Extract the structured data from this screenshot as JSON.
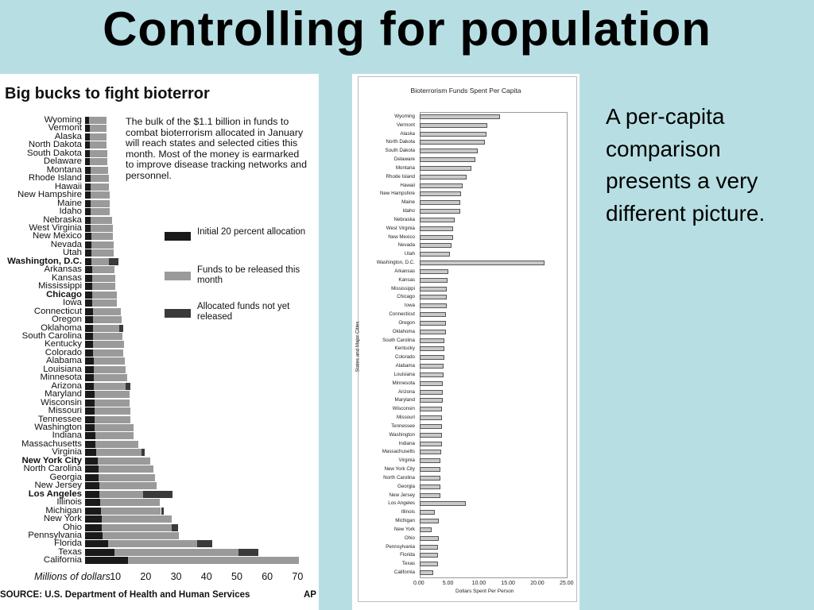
{
  "slide": {
    "title": "Controlling for population",
    "side_text": "A per-capita comparison presents a very different picture."
  },
  "left_chart": {
    "title": "Big bucks to fight bioterror",
    "note": "The bulk of the $1.1 billion in funds to combat bioterrorism allocated in January will reach states and selected cities this month. Most of the money is earmarked to improve disease tracking networks and personnel.",
    "legend": [
      {
        "label": "Initial 20 percent allocation",
        "color": "#1a1a1a"
      },
      {
        "label": "Funds to be released this month",
        "color": "#9a9a9a"
      },
      {
        "label": "Allocated funds not yet released",
        "color": "#3a3a3a"
      }
    ],
    "xlabel": "Millions of dollars",
    "ticks": [
      "10",
      "20",
      "30",
      "40",
      "50",
      "60",
      "70"
    ],
    "source": "SOURCE: U.S. Department of Health and Human Services",
    "credit": "AP"
  },
  "right_chart": {
    "title": "Bioterrorism Funds Spent Per Capita",
    "xlabel": "Dollars Spent Per Person",
    "ylabel": "States and Major Cities",
    "ticks": [
      "0.00",
      "5.00",
      "10.00",
      "15.00",
      "20.00",
      "25.00"
    ]
  },
  "chart_data": [
    {
      "type": "bar",
      "orientation": "horizontal",
      "stacked": true,
      "title": "Big bucks to fight bioterror",
      "xlabel": "Millions of dollars",
      "xlim": [
        0,
        70
      ],
      "categories": [
        "Wyoming",
        "Vermont",
        "Alaska",
        "North Dakota",
        "South Dakota",
        "Delaware",
        "Montana",
        "Rhode Island",
        "Hawaii",
        "New Hampshire",
        "Maine",
        "Idaho",
        "Nebraska",
        "West Virginia",
        "New Mexico",
        "Nevada",
        "Utah",
        "Washington, D.C.",
        "Arkansas",
        "Kansas",
        "Mississippi",
        "Chicago",
        "Iowa",
        "Connecticut",
        "Oregon",
        "Oklahoma",
        "South Carolina",
        "Kentucky",
        "Colorado",
        "Alabama",
        "Louisiana",
        "Minnesota",
        "Arizona",
        "Maryland",
        "Wisconsin",
        "Missouri",
        "Tennessee",
        "Washington",
        "Indiana",
        "Massachusetts",
        "Virginia",
        "New York City",
        "North Carolina",
        "Georgia",
        "New Jersey",
        "Los Angeles",
        "Illinois",
        "Michigan",
        "New York",
        "Ohio",
        "Pennsylvania",
        "Florida",
        "Texas",
        "California"
      ],
      "bold_categories": [
        "Washington, D.C.",
        "Chicago",
        "New York City",
        "Los Angeles"
      ],
      "series": [
        {
          "name": "Initial 20 percent allocation",
          "values": [
            1.4,
            1.6,
            1.6,
            1.6,
            1.6,
            1.7,
            1.8,
            1.8,
            1.8,
            1.8,
            1.8,
            1.8,
            1.9,
            1.9,
            2.0,
            2.0,
            2.1,
            2.2,
            2.3,
            2.3,
            2.3,
            2.4,
            2.4,
            2.5,
            2.5,
            2.6,
            2.6,
            2.6,
            2.7,
            2.8,
            2.8,
            3.0,
            3.0,
            3.1,
            3.1,
            3.2,
            3.2,
            3.2,
            3.3,
            3.4,
            3.6,
            4.3,
            4.5,
            4.5,
            4.6,
            4.8,
            5.1,
            5.3,
            5.4,
            5.5,
            5.8,
            7.6,
            9.8,
            14.2
          ]
        },
        {
          "name": "Funds to be released this month",
          "values": [
            5.6,
            5.4,
            5.4,
            5.5,
            5.6,
            5.6,
            5.7,
            6.1,
            6.0,
            6.3,
            6.4,
            6.2,
            7.1,
            7.2,
            7.1,
            7.4,
            7.4,
            5.6,
            7.4,
            7.7,
            7.7,
            8.1,
            8.2,
            9.4,
            9.5,
            8.6,
            9.6,
            10.1,
            9.9,
            10.3,
            10.5,
            11.0,
            10.4,
            11.6,
            11.6,
            11.7,
            11.6,
            12.7,
            12.6,
            14.1,
            15.0,
            17.2,
            18.1,
            18.5,
            18.9,
            14.2,
            19.4,
            19.7,
            23.1,
            23.1,
            25.2,
            29.3,
            40.6,
            56.1
          ]
        },
        {
          "name": "Allocated funds not yet released",
          "values": [
            0,
            0,
            0,
            0,
            0,
            0,
            0,
            0,
            0,
            0,
            0,
            0,
            0,
            0,
            0,
            0,
            0,
            3.2,
            0,
            0,
            0,
            0,
            0,
            0,
            0,
            1.4,
            0,
            0,
            0,
            0,
            0,
            0,
            1.6,
            0,
            0,
            0,
            0,
            0,
            0,
            0,
            1.0,
            0,
            0,
            0,
            0,
            9.8,
            0,
            0.8,
            0,
            2.1,
            0,
            5.0,
            6.8,
            0
          ]
        }
      ]
    },
    {
      "type": "bar",
      "orientation": "horizontal",
      "title": "Bioterrorism Funds Spent Per Capita",
      "xlabel": "Dollars Spent Per Person",
      "ylabel": "States and Major Cities",
      "xlim": [
        0,
        25
      ],
      "categories": [
        "Wyoming",
        "Vermont",
        "Alaska",
        "North Dakota",
        "South Dakota",
        "Delaware",
        "Montana",
        "Rhode Island",
        "Hawaii",
        "New Hampshire",
        "Maine",
        "Idaho",
        "Nebraska",
        "West Virginia",
        "New Mexico",
        "Nevada",
        "Utah",
        "Washington, D.C.",
        "Arkansas",
        "Kansas",
        "Mississippi",
        "Chicago",
        "Iowa",
        "Connecticut",
        "Oregon",
        "Oklahoma",
        "South Carolina",
        "Kentucky",
        "Colorado",
        "Alabama",
        "Louisiana",
        "Minnesota",
        "Arizona",
        "Maryland",
        "Wisconsin",
        "Missouri",
        "Tennessee",
        "Washington",
        "Indiana",
        "Massachusetts",
        "Virginia",
        "New York City",
        "North Carolina",
        "Georgia",
        "New Jersey",
        "Los Angeles",
        "Illinois",
        "Michigan",
        "New York",
        "Ohio",
        "Pennsylvania",
        "Florida",
        "Texas",
        "California"
      ],
      "values": [
        13.4,
        11.3,
        11.1,
        10.9,
        9.6,
        9.3,
        8.5,
        7.7,
        7.0,
        6.8,
        6.7,
        6.7,
        5.7,
        5.5,
        5.5,
        5.2,
        4.9,
        21.1,
        4.6,
        4.5,
        4.4,
        4.4,
        4.4,
        4.2,
        4.2,
        4.2,
        4.0,
        3.9,
        3.9,
        3.8,
        3.8,
        3.7,
        3.7,
        3.7,
        3.6,
        3.6,
        3.5,
        3.5,
        3.5,
        3.4,
        3.3,
        3.2,
        3.2,
        3.2,
        3.2,
        7.6,
        2.3,
        3.0,
        1.7,
        3.0,
        2.9,
        2.9,
        2.8,
        2.0
      ]
    }
  ]
}
